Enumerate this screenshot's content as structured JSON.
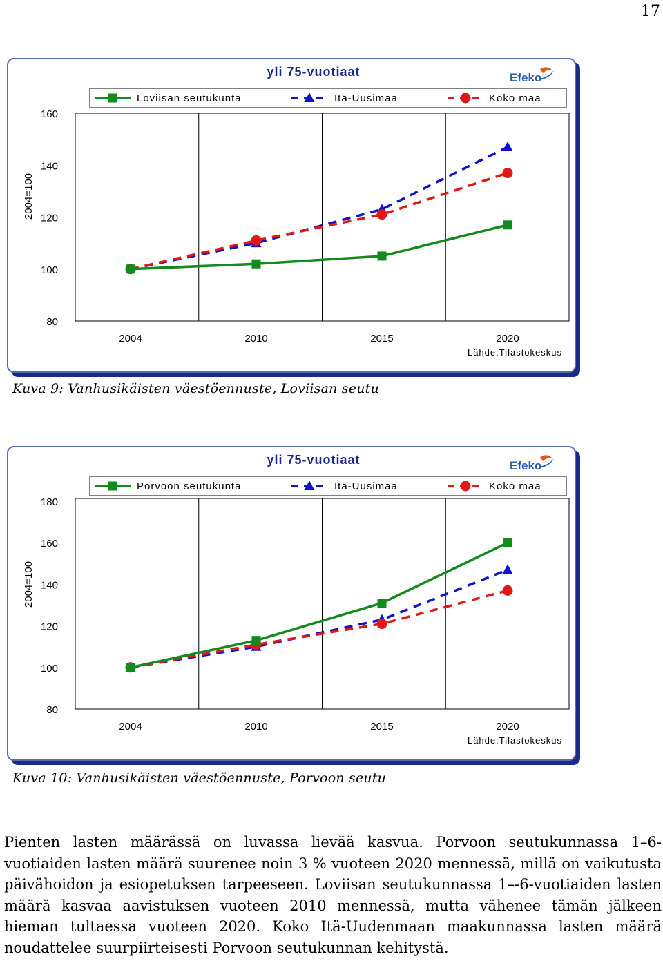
{
  "page_number": "17",
  "charts": [
    {
      "chart_data": {
        "type": "line",
        "title": "yli 75-vuotiaat",
        "ylabel": "2004=100",
        "ylim": [
          80,
          160
        ],
        "yticks": [
          "80",
          "100",
          "120",
          "140",
          "160"
        ],
        "categories": [
          "2004",
          "2010",
          "2015",
          "2020"
        ],
        "series": [
          {
            "name": "Loviisan seutukunta",
            "values": [
              100,
              102,
              105,
              117
            ],
            "color": "#138a1c",
            "marker": "square",
            "style": "solid"
          },
          {
            "name": "Itä-Uusimaa",
            "values": [
              100,
              110,
              123,
              147
            ],
            "color": "#1212c8",
            "marker": "triangle",
            "style": "dashed"
          },
          {
            "name": "Koko maa",
            "values": [
              100,
              111,
              121,
              137
            ],
            "color": "#e01818",
            "marker": "circle",
            "style": "dashed"
          }
        ],
        "source": "Lähde:Tilastokeskus",
        "logo": "Efeko"
      },
      "caption": "Kuva 9: Vanhusikäisten väestöennuste, Loviisan seutu"
    },
    {
      "chart_data": {
        "type": "line",
        "title": "yli 75-vuotiaat",
        "ylabel": "2004=100",
        "ylim": [
          80,
          180
        ],
        "yticks": [
          "80",
          "100",
          "120",
          "140",
          "160",
          "180"
        ],
        "categories": [
          "2004",
          "2010",
          "2015",
          "2020"
        ],
        "series": [
          {
            "name": "Porvoon seutukunta",
            "values": [
              100,
              113,
              131,
              160
            ],
            "color": "#138a1c",
            "marker": "square",
            "style": "solid"
          },
          {
            "name": "Itä-Uusimaa",
            "values": [
              100,
              110,
              123,
              147
            ],
            "color": "#1212c8",
            "marker": "triangle",
            "style": "dashed"
          },
          {
            "name": "Koko maa",
            "values": [
              100,
              111,
              121,
              137
            ],
            "color": "#e01818",
            "marker": "circle",
            "style": "dashed"
          }
        ],
        "source": "Lähde:Tilastokeskus",
        "logo": "Efeko"
      },
      "caption": "Kuva 10: Vanhusikäisten väestöennuste, Porvoon seutu"
    }
  ],
  "body_text": "Pienten lasten määrässä on luvassa lievää kasvua. Porvoon seutukunnassa 1–6-vuotiaiden lasten määrä suurenee noin 3 % vuoteen 2020 mennessä, millä on vaikutusta päivähoidon ja esiopetuksen tarpeeseen. Loviisan seutukunnassa 1–-6-vuotiaiden lasten määrä kasvaa aavistuksen vuoteen 2010 mennessä, mutta vähenee tämän jälkeen hieman tultaessa vuoteen 2020. Koko Itä-Uudenmaan maakunnassa lasten määrä noudattelee suurpiirteisesti Porvoon seutukunnan kehitystä."
}
